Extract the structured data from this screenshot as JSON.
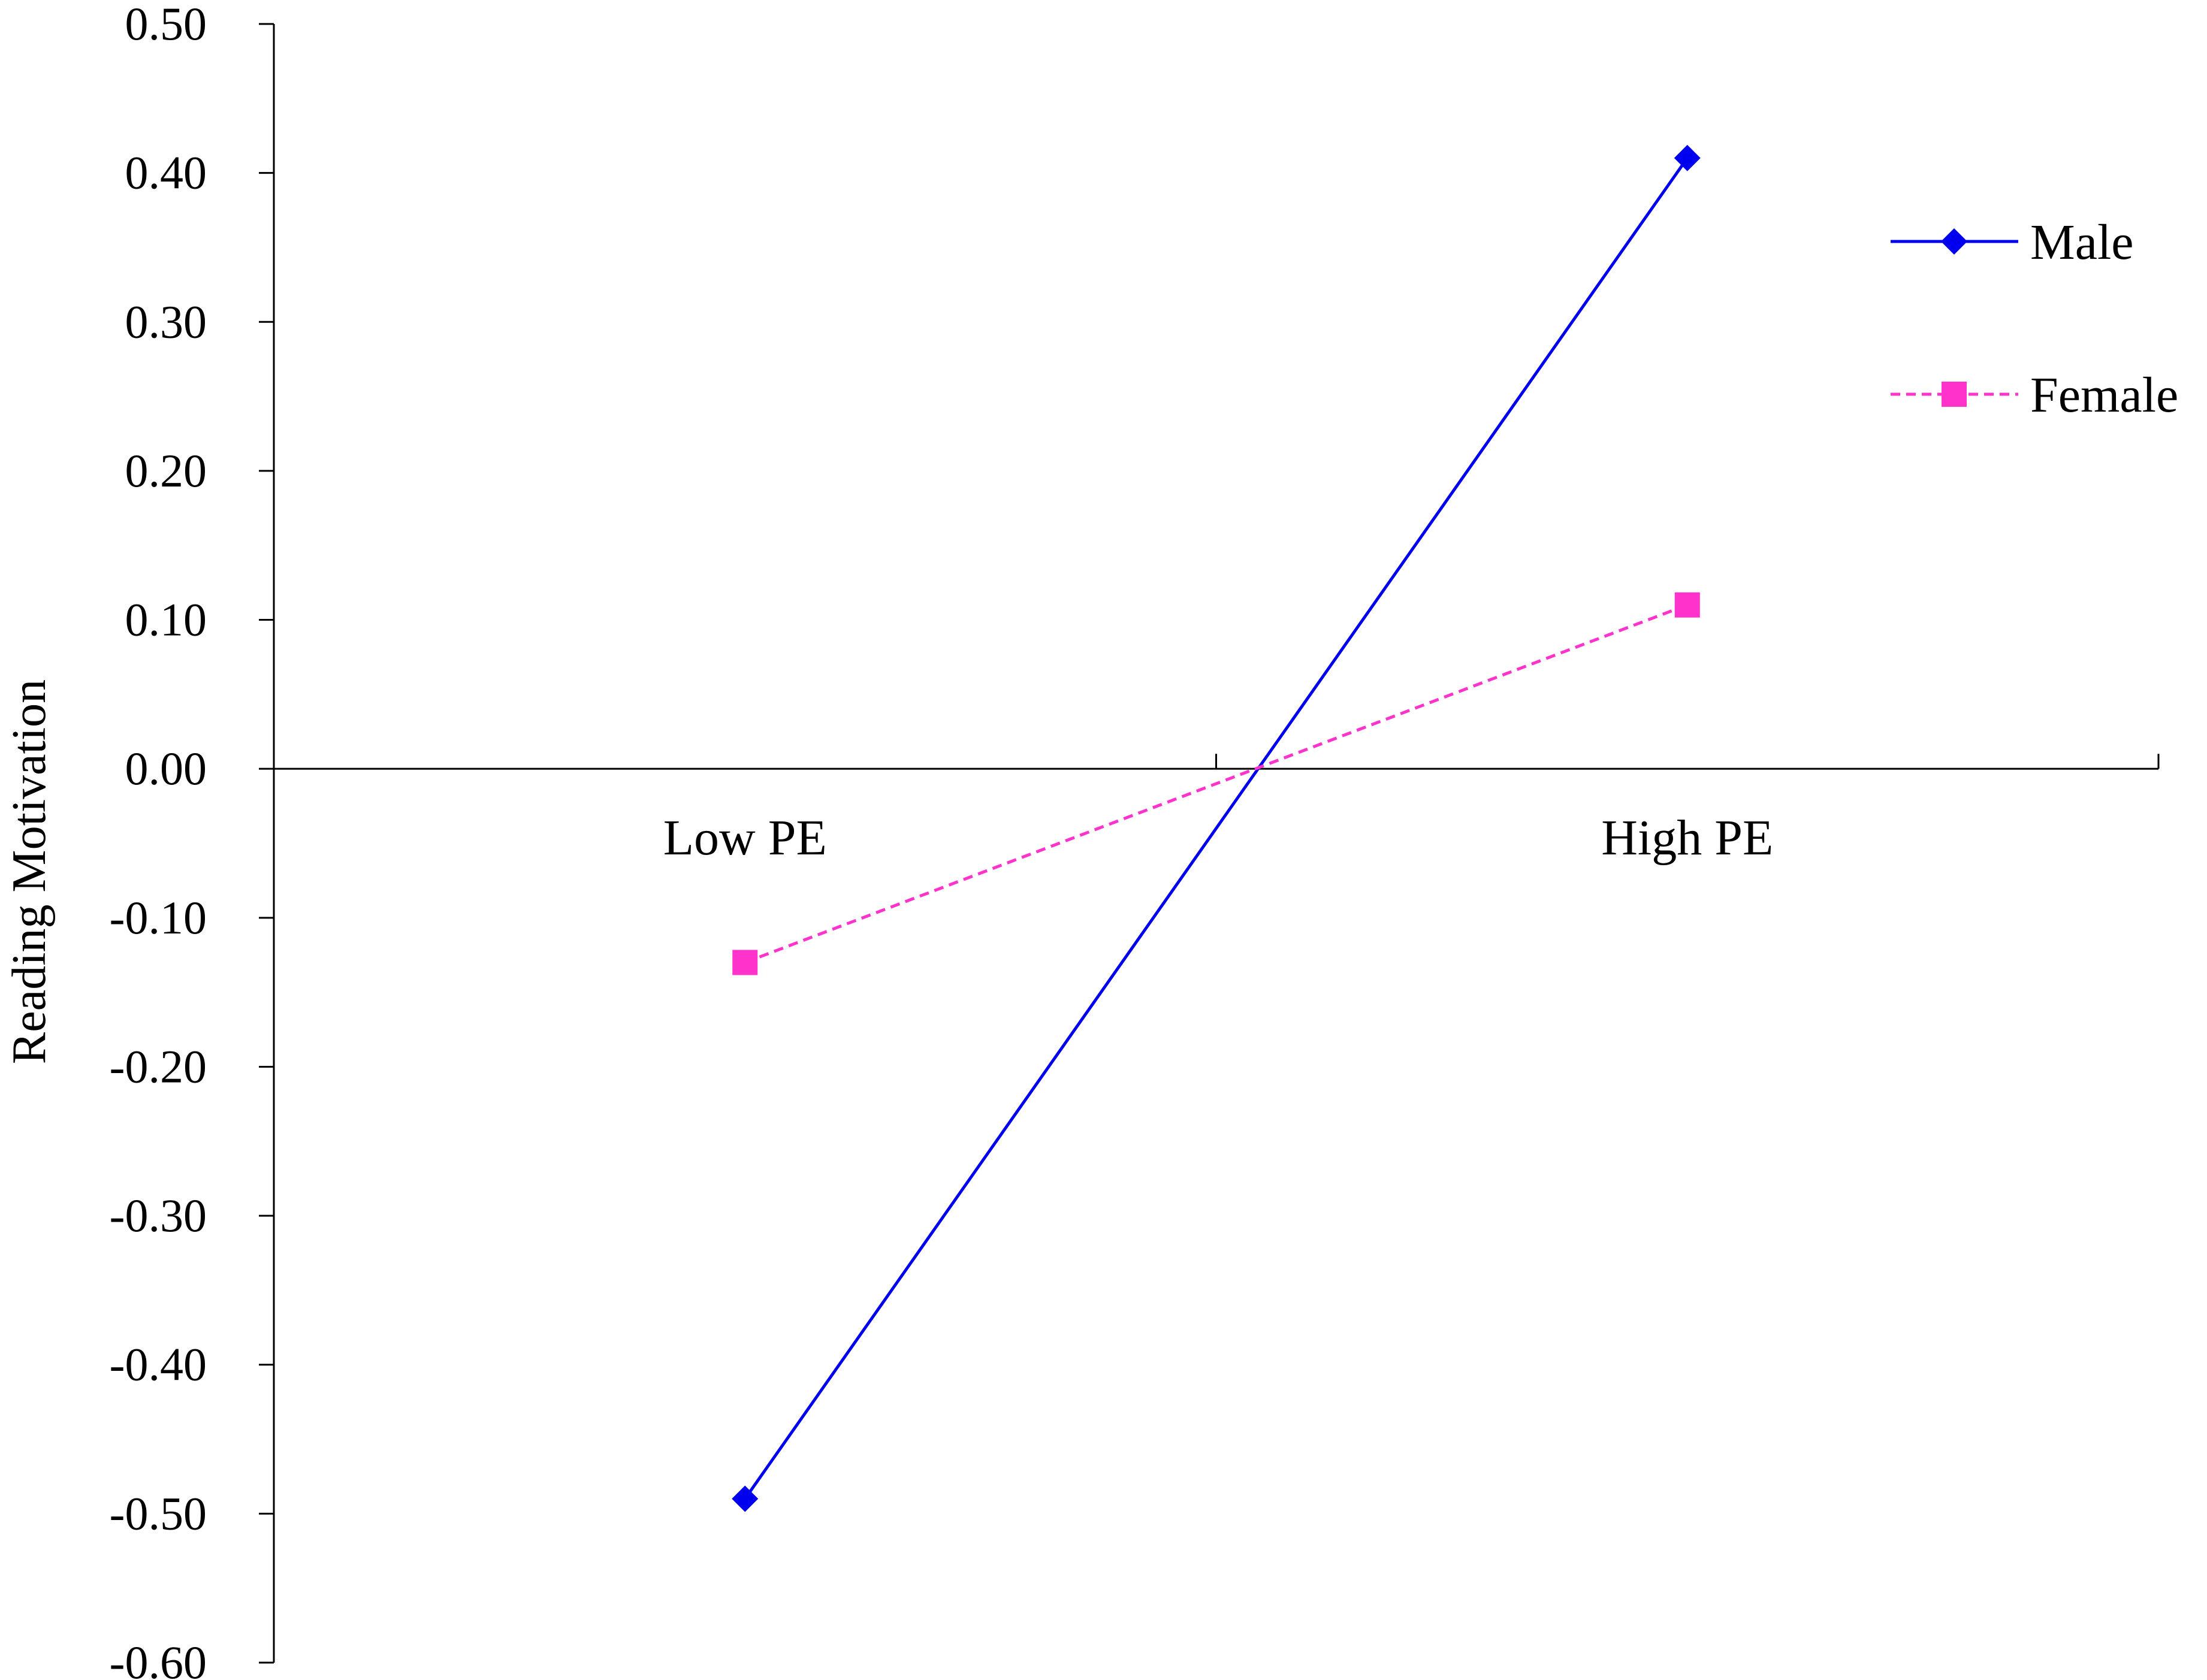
{
  "chart_data": {
    "type": "line",
    "categories": [
      "Low PE",
      "High PE"
    ],
    "series": [
      {
        "name": "Male",
        "values": [
          -0.49,
          0.41
        ],
        "color": "#0000ee",
        "dash": "solid",
        "marker": "diamond"
      },
      {
        "name": "Female",
        "values": [
          -0.13,
          0.11
        ],
        "color": "#ff33cc",
        "dash": "dashed",
        "marker": "square"
      }
    ],
    "title": "",
    "xlabel": "",
    "ylabel": "Reading Motivation",
    "ylim": [
      -0.6,
      0.5
    ],
    "yticks": [
      "0.50",
      "0.40",
      "0.30",
      "0.20",
      "0.10",
      "0.00",
      "-0.10",
      "-0.20",
      "-0.30",
      "-0.40",
      "-0.50",
      "-0.60"
    ],
    "grid": false,
    "legend_position": "top-right"
  }
}
